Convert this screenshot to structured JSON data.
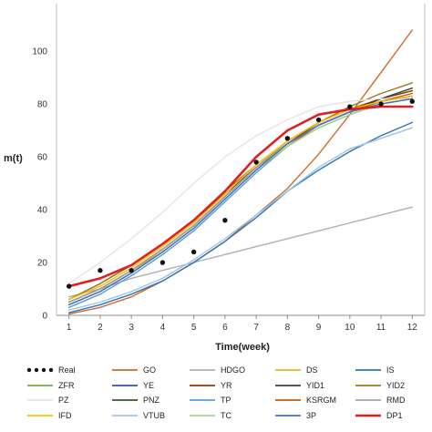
{
  "chart_data": {
    "type": "line",
    "title": "",
    "xlabel": "Time(week)",
    "ylabel": "m(t)",
    "xlim": [
      0.6,
      12.4
    ],
    "ylim": [
      0,
      118
    ],
    "x": [
      1,
      2,
      3,
      4,
      5,
      6,
      7,
      8,
      9,
      10,
      11,
      12
    ],
    "xticks": [
      "1",
      "2",
      "3",
      "4",
      "5",
      "6",
      "7",
      "8",
      "9",
      "10",
      "11",
      "12"
    ],
    "yticks": [
      0,
      20,
      40,
      60,
      80,
      100
    ],
    "grid": false,
    "legend_position": "bottom",
    "series": [
      {
        "name": "Real",
        "color": "#111111",
        "style": "dots",
        "values": [
          11,
          17,
          17,
          20,
          24,
          36,
          58,
          67,
          74,
          79,
          80,
          81
        ]
      },
      {
        "name": "GO",
        "color": "#d06a2a",
        "style": "line",
        "values": [
          0.5,
          3,
          7,
          13,
          20,
          28,
          38,
          48,
          61,
          76,
          92,
          108
        ]
      },
      {
        "name": "HDGO",
        "color": "#b0b0b0",
        "style": "line",
        "values": [
          7,
          10,
          14,
          17,
          20,
          23,
          26,
          29,
          32,
          35,
          38,
          41
        ]
      },
      {
        "name": "DS",
        "color": "#e6b422",
        "style": "line",
        "values": [
          4,
          9,
          16,
          25,
          34,
          45,
          56,
          66,
          73,
          78,
          82,
          85
        ]
      },
      {
        "name": "IS",
        "color": "#2e75b6",
        "style": "line",
        "values": [
          1,
          4,
          8,
          13,
          20,
          28,
          37,
          47,
          55,
          62,
          68,
          73
        ]
      },
      {
        "name": "ZFR",
        "color": "#70ad47",
        "style": "line",
        "values": [
          5,
          10,
          17,
          25,
          34,
          45,
          56,
          65,
          72,
          77,
          80,
          82
        ]
      },
      {
        "name": "YE",
        "color": "#2f5597",
        "style": "line",
        "values": [
          4,
          9,
          16,
          24,
          33,
          44,
          55,
          65,
          72,
          77,
          81,
          83
        ]
      },
      {
        "name": "YR",
        "color": "#843c0c",
        "style": "line",
        "values": [
          5,
          10,
          17,
          25,
          34,
          45,
          56,
          65,
          73,
          78,
          82,
          85
        ]
      },
      {
        "name": "YID1",
        "color": "#404040",
        "style": "line",
        "values": [
          6,
          12,
          19,
          27,
          36,
          46,
          56,
          65,
          72,
          77,
          82,
          86
        ]
      },
      {
        "name": "YID2",
        "color": "#9c7a1c",
        "style": "line",
        "values": [
          6,
          12,
          19,
          27,
          36,
          47,
          57,
          66,
          73,
          79,
          84,
          88
        ]
      },
      {
        "name": "PZ",
        "color": "#e4e4e4",
        "style": "line",
        "values": [
          12,
          20,
          29,
          39,
          50,
          60,
          68,
          74,
          79,
          81,
          82,
          82
        ]
      },
      {
        "name": "PNZ",
        "color": "#375623",
        "style": "line",
        "values": [
          5,
          10,
          17,
          25,
          34,
          45,
          56,
          65,
          72,
          77,
          81,
          83
        ]
      },
      {
        "name": "TP",
        "color": "#5b9bd5",
        "style": "line",
        "values": [
          3,
          8,
          15,
          23,
          32,
          43,
          54,
          64,
          71,
          76,
          80,
          82
        ]
      },
      {
        "name": "KSRGM",
        "color": "#c55a11",
        "style": "line",
        "values": [
          4,
          9,
          16,
          24,
          33,
          44,
          55,
          64,
          72,
          77,
          81,
          84
        ]
      },
      {
        "name": "RMD",
        "color": "#a5a5a5",
        "style": "line",
        "values": [
          5,
          10,
          17,
          25,
          34,
          45,
          56,
          65,
          72,
          77,
          80,
          82
        ]
      },
      {
        "name": "IFD",
        "color": "#ffc000",
        "style": "line",
        "values": [
          6,
          11,
          18,
          26,
          35,
          46,
          57,
          66,
          73,
          78,
          81,
          83
        ]
      },
      {
        "name": "VTUB",
        "color": "#9dc3e6",
        "style": "line",
        "values": [
          2,
          5,
          9,
          14,
          21,
          29,
          38,
          47,
          56,
          63,
          67,
          71
        ]
      },
      {
        "name": "TC",
        "color": "#a9d18e",
        "style": "line",
        "values": [
          4,
          9,
          16,
          24,
          33,
          44,
          55,
          64,
          71,
          76,
          80,
          82
        ]
      },
      {
        "name": "3P",
        "color": "#4472c4",
        "style": "line",
        "values": [
          4,
          9,
          16,
          24,
          33,
          44,
          55,
          65,
          72,
          77,
          80,
          82
        ]
      },
      {
        "name": "DP1",
        "color": "#e02020",
        "style": "line",
        "values": [
          11,
          14,
          19,
          27,
          36,
          47,
          60,
          70,
          76,
          78,
          79,
          79
        ]
      }
    ]
  }
}
